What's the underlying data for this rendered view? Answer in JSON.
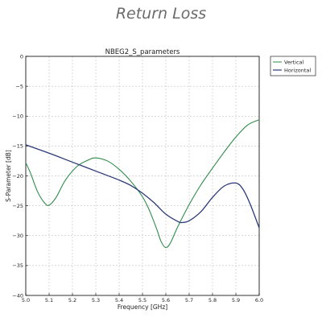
{
  "page": {
    "heading": "Return Loss"
  },
  "chart_data": {
    "type": "line",
    "title": "NBEG2_S_parameters",
    "xlabel": "Frequency [GHz]",
    "ylabel": "S-Parameter [dB]",
    "xlim": [
      5.0,
      6.0
    ],
    "ylim": [
      -40,
      0
    ],
    "xticks": [
      "5.0",
      "5.1",
      "5.2",
      "5.3",
      "5.4",
      "5.5",
      "5.6",
      "5.7",
      "5.8",
      "5.9",
      "6.0"
    ],
    "yticks": [
      "0",
      "−5",
      "−10",
      "−15",
      "−20",
      "−25",
      "−30",
      "−35",
      "−40"
    ],
    "grid": true,
    "legend_position": "outside-top-right",
    "series": [
      {
        "name": "Vertical",
        "color": "#2e8b4a",
        "x": [
          5.0,
          5.02,
          5.05,
          5.08,
          5.1,
          5.13,
          5.17,
          5.22,
          5.27,
          5.3,
          5.35,
          5.4,
          5.45,
          5.5,
          5.53,
          5.56,
          5.58,
          5.6,
          5.62,
          5.65,
          5.7,
          5.75,
          5.8,
          5.85,
          5.9,
          5.95,
          6.0
        ],
        "y": [
          -17.8,
          -19.5,
          -22.6,
          -24.5,
          -24.9,
          -23.6,
          -20.7,
          -18.4,
          -17.3,
          -17.0,
          -17.5,
          -18.9,
          -20.9,
          -23.5,
          -25.8,
          -28.8,
          -31.0,
          -32.0,
          -31.2,
          -28.6,
          -24.8,
          -21.5,
          -18.7,
          -16.0,
          -13.5,
          -11.5,
          -10.6
        ]
      },
      {
        "name": "Horizontal",
        "color": "#2b3a78",
        "x": [
          5.0,
          5.1,
          5.2,
          5.3,
          5.4,
          5.45,
          5.5,
          5.55,
          5.6,
          5.65,
          5.67,
          5.7,
          5.75,
          5.8,
          5.85,
          5.9,
          5.93,
          5.96,
          6.0
        ],
        "y": [
          -14.8,
          -16.2,
          -17.7,
          -19.2,
          -20.7,
          -21.6,
          -22.9,
          -24.5,
          -26.4,
          -27.6,
          -27.8,
          -27.5,
          -26.0,
          -23.6,
          -21.7,
          -21.2,
          -22.2,
          -24.6,
          -28.7
        ]
      }
    ]
  }
}
